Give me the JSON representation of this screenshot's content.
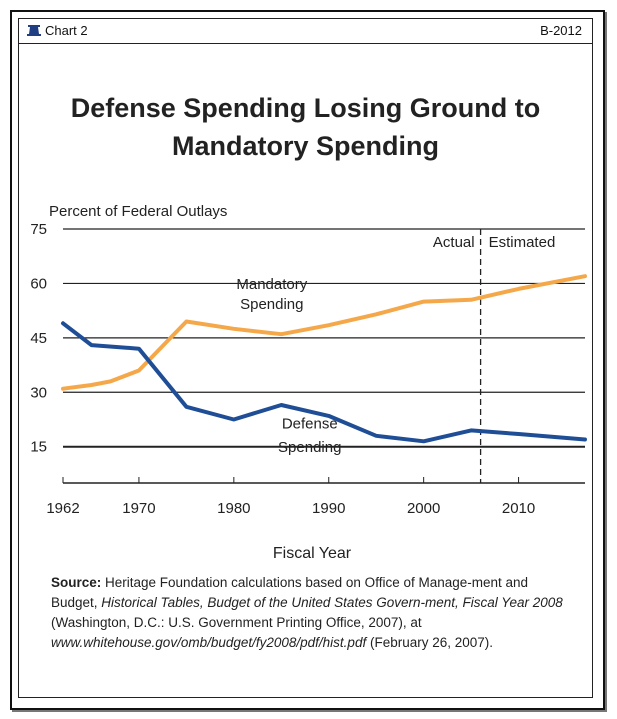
{
  "header": {
    "chart_number": "Chart 2",
    "code": "B-2012"
  },
  "chart_data": {
    "type": "line",
    "title_line1": "Defense Spending Losing Ground to",
    "title_line2": "Mandatory Spending",
    "ylabel": "Percent of Federal Outlays",
    "xlabel": "Fiscal Year",
    "yticks": [
      15,
      30,
      45,
      60,
      75
    ],
    "ylim": [
      5,
      75
    ],
    "xlim": [
      1962,
      2017
    ],
    "xticks": [
      1962,
      1970,
      1980,
      1990,
      2000,
      2010
    ],
    "divider_year": 2006,
    "divider_labels": {
      "left": "Actual",
      "right": "Estimated"
    },
    "series": [
      {
        "name": "Mandatory Spending",
        "label_line1": "Mandatory",
        "label_line2": "Spending",
        "color": "#f5a84a",
        "x": [
          1962,
          1965,
          1967,
          1970,
          1975,
          1980,
          1985,
          1990,
          1995,
          2000,
          2005,
          2010,
          2017
        ],
        "y": [
          31,
          32,
          33,
          36,
          49.5,
          47.5,
          46,
          48.5,
          51.5,
          55,
          55.5,
          58.5,
          62
        ]
      },
      {
        "name": "Defense Spending",
        "label_line1": "Defense",
        "label_line2": "Spending",
        "color": "#1f4e96",
        "x": [
          1962,
          1965,
          1970,
          1975,
          1980,
          1985,
          1990,
          1995,
          2000,
          2005,
          2010,
          2017
        ],
        "y": [
          49,
          43,
          42,
          26,
          22.5,
          26.5,
          23.5,
          18,
          16.5,
          19.5,
          18.5,
          17
        ]
      }
    ]
  },
  "source": {
    "label": "Source:",
    "text1": " Heritage Foundation calculations based on Office of Manage-ment and Budget, ",
    "italic1": "Historical Tables, Budget of the United States Govern-ment, Fiscal Year 2008",
    "text2": " (Washington, D.C.: U.S. Government Printing Office, 2007), at ",
    "italic2": "www.whitehouse.gov/omb/budget/fy2008/pdf/hist.pdf",
    "text3": " (February 26, 2007)."
  }
}
